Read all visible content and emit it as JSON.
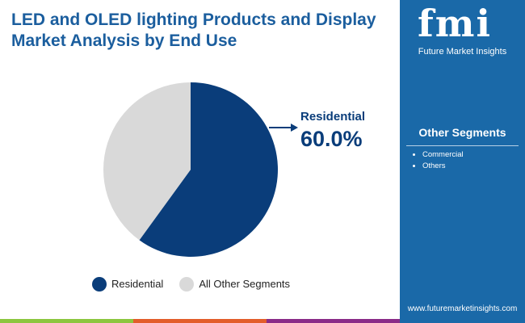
{
  "title": "LED and OLED lighting Products and Display Market Analysis by End Use",
  "brand": {
    "logo": "fmi",
    "name": "Future Market Insights",
    "url": "www.futuremarketinsights.com"
  },
  "sidebar": {
    "title": "Other Segments",
    "items": [
      "Commercial",
      "Others"
    ]
  },
  "chart_data": {
    "type": "pie",
    "categories": [
      "Residential",
      "All Other Segments"
    ],
    "values": [
      60.0,
      40.0
    ],
    "colors": [
      "#0a3d7a",
      "#d9d9d9"
    ],
    "annotation": {
      "label": "Residential",
      "value": "60.0%"
    },
    "legend": "bottom"
  },
  "colors": {
    "sidebar": "#1a69a8",
    "bars": [
      "#8cc63f",
      "#e35d2b",
      "#8a2b88"
    ]
  }
}
